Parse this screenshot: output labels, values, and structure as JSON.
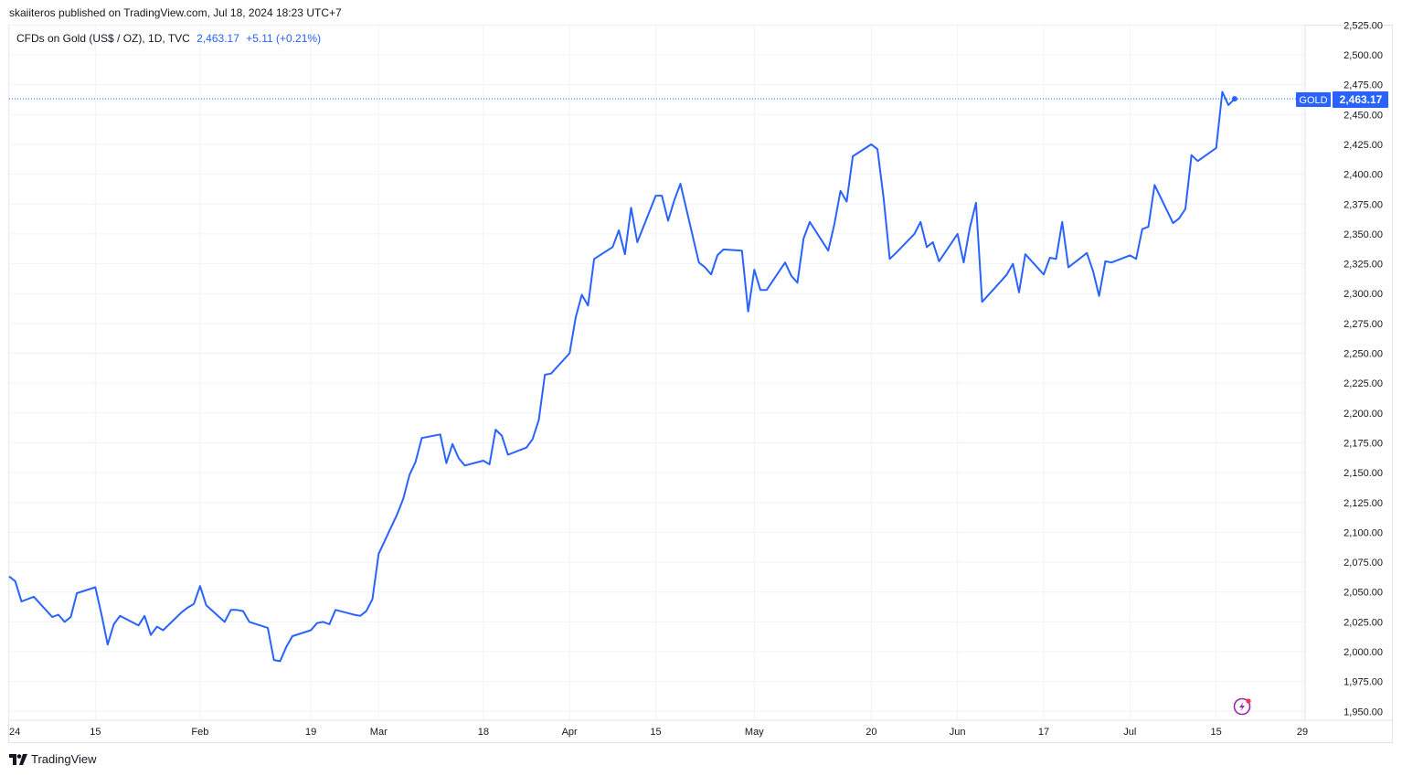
{
  "header": {
    "publish_info": "skaiiteros published on TradingView.com, Jul 18, 2024 18:23 UTC+7"
  },
  "legend": {
    "symbol": "CFDs on Gold (US$ / OZ), 1D, TVC",
    "last_value": "2,463.17",
    "change": "+5.11 (+0.21%)"
  },
  "price_tag": {
    "ticker": "GOLD",
    "value": "2,463.17"
  },
  "footer": {
    "brand": "TradingView"
  },
  "colors": {
    "line": "#2962ff",
    "grid": "#f0f3fa",
    "text": "#131722",
    "lightning_icon": "#9c27b0",
    "notification_dot": "#f23645"
  },
  "chart_data": {
    "type": "line",
    "title": "",
    "xlabel": "",
    "ylabel": "",
    "ylim": [
      1940,
      2525
    ],
    "grid": true,
    "y_ticks": [
      "1,950.00",
      "1,975.00",
      "2,000.00",
      "2,025.00",
      "2,050.00",
      "2,075.00",
      "2,100.00",
      "2,125.00",
      "2,150.00",
      "2,175.00",
      "2,200.00",
      "2,225.00",
      "2,250.00",
      "2,275.00",
      "2,300.00",
      "2,325.00",
      "2,350.00",
      "2,375.00",
      "2,400.00",
      "2,425.00",
      "2,450.00",
      "2,475.00",
      "2,500.00",
      "2,525.00"
    ],
    "x_ticks": [
      {
        "label": "24",
        "date": "2024-01-01"
      },
      {
        "label": "15",
        "date": "2024-01-15"
      },
      {
        "label": "Feb",
        "date": "2024-02-01"
      },
      {
        "label": "19",
        "date": "2024-02-19"
      },
      {
        "label": "Mar",
        "date": "2024-03-01"
      },
      {
        "label": "18",
        "date": "2024-03-18"
      },
      {
        "label": "Apr",
        "date": "2024-04-01"
      },
      {
        "label": "15",
        "date": "2024-04-15"
      },
      {
        "label": "May",
        "date": "2024-05-01"
      },
      {
        "label": "20",
        "date": "2024-05-20"
      },
      {
        "label": "Jun",
        "date": "2024-06-03"
      },
      {
        "label": "17",
        "date": "2024-06-17"
      },
      {
        "label": "Jul",
        "date": "2024-07-01"
      },
      {
        "label": "15",
        "date": "2024-07-15"
      },
      {
        "label": "29",
        "date": "2024-07-29"
      }
    ],
    "series": [
      {
        "x": [
          "2024-01-01",
          "2024-01-02",
          "2024-01-03",
          "2024-01-04",
          "2024-01-05",
          "2024-01-08",
          "2024-01-09",
          "2024-01-10",
          "2024-01-11",
          "2024-01-12",
          "2024-01-15",
          "2024-01-16",
          "2024-01-17",
          "2024-01-18",
          "2024-01-19",
          "2024-01-22",
          "2024-01-23",
          "2024-01-24",
          "2024-01-25",
          "2024-01-26",
          "2024-01-29",
          "2024-01-30",
          "2024-01-31",
          "2024-02-01",
          "2024-02-02",
          "2024-02-05",
          "2024-02-06",
          "2024-02-07",
          "2024-02-08",
          "2024-02-09",
          "2024-02-12",
          "2024-02-13",
          "2024-02-14",
          "2024-02-15",
          "2024-02-16",
          "2024-02-19",
          "2024-02-20",
          "2024-02-21",
          "2024-02-22",
          "2024-02-23",
          "2024-02-26",
          "2024-02-27",
          "2024-02-28",
          "2024-02-29",
          "2024-03-01",
          "2024-03-04",
          "2024-03-05",
          "2024-03-06",
          "2024-03-07",
          "2024-03-08",
          "2024-03-11",
          "2024-03-12",
          "2024-03-13",
          "2024-03-14",
          "2024-03-15",
          "2024-03-18",
          "2024-03-19",
          "2024-03-20",
          "2024-03-21",
          "2024-03-22",
          "2024-03-25",
          "2024-03-26",
          "2024-03-27",
          "2024-03-28",
          "2024-03-29",
          "2024-04-01",
          "2024-04-02",
          "2024-04-03",
          "2024-04-04",
          "2024-04-05",
          "2024-04-08",
          "2024-04-09",
          "2024-04-10",
          "2024-04-11",
          "2024-04-12",
          "2024-04-15",
          "2024-04-16",
          "2024-04-17",
          "2024-04-18",
          "2024-04-19",
          "2024-04-22",
          "2024-04-23",
          "2024-04-24",
          "2024-04-25",
          "2024-04-26",
          "2024-04-29",
          "2024-04-30",
          "2024-05-01",
          "2024-05-02",
          "2024-05-03",
          "2024-05-06",
          "2024-05-07",
          "2024-05-08",
          "2024-05-09",
          "2024-05-10",
          "2024-05-13",
          "2024-05-14",
          "2024-05-15",
          "2024-05-16",
          "2024-05-17",
          "2024-05-20",
          "2024-05-21",
          "2024-05-22",
          "2024-05-23",
          "2024-05-24",
          "2024-05-27",
          "2024-05-28",
          "2024-05-29",
          "2024-05-30",
          "2024-05-31",
          "2024-06-03",
          "2024-06-04",
          "2024-06-05",
          "2024-06-06",
          "2024-06-07",
          "2024-06-10",
          "2024-06-11",
          "2024-06-12",
          "2024-06-13",
          "2024-06-14",
          "2024-06-17",
          "2024-06-18",
          "2024-06-19",
          "2024-06-20",
          "2024-06-21",
          "2024-06-24",
          "2024-06-25",
          "2024-06-26",
          "2024-06-27",
          "2024-06-28",
          "2024-07-01",
          "2024-07-02",
          "2024-07-03",
          "2024-07-04",
          "2024-07-05",
          "2024-07-08",
          "2024-07-09",
          "2024-07-10",
          "2024-07-11",
          "2024-07-12",
          "2024-07-15",
          "2024-07-16",
          "2024-07-17",
          "2024-07-18"
        ],
        "values": [
          2063,
          2059,
          2042,
          2044,
          2046,
          2029,
          2031,
          2025,
          2029,
          2049,
          2054,
          2031,
          2006,
          2023,
          2030,
          2022,
          2030,
          2014,
          2021,
          2018,
          2033,
          2037,
          2040,
          2055,
          2039,
          2025,
          2035,
          2035,
          2034,
          2025,
          2020,
          1993,
          1992,
          2004,
          2013,
          2018,
          2024,
          2025,
          2023,
          2035,
          2031,
          2030,
          2034,
          2044,
          2082,
          2115,
          2128,
          2148,
          2159,
          2179,
          2182,
          2158,
          2174,
          2162,
          2156,
          2160,
          2157,
          2186,
          2181,
          2165,
          2171,
          2178,
          2194,
          2232,
          2233,
          2250,
          2280,
          2299,
          2290,
          2329,
          2339,
          2353,
          2333,
          2372,
          2343,
          2382,
          2382,
          2361,
          2378,
          2392,
          2326,
          2322,
          2316,
          2332,
          2337,
          2336,
          2285,
          2320,
          2303,
          2303,
          2326,
          2315,
          2309,
          2346,
          2360,
          2336,
          2358,
          2386,
          2377,
          2415,
          2425,
          2421,
          2380,
          2329,
          2334,
          2350,
          2360,
          2339,
          2343,
          2327,
          2350,
          2326,
          2355,
          2376,
          2293,
          2310,
          2316,
          2325,
          2301,
          2333,
          2316,
          2330,
          2329,
          2360,
          2322,
          2334,
          2319,
          2298,
          2327,
          2326,
          2332,
          2329,
          2354,
          2356,
          2391,
          2359,
          2363,
          2371,
          2416,
          2411,
          2422,
          2469,
          2458,
          2463.17
        ]
      }
    ]
  }
}
